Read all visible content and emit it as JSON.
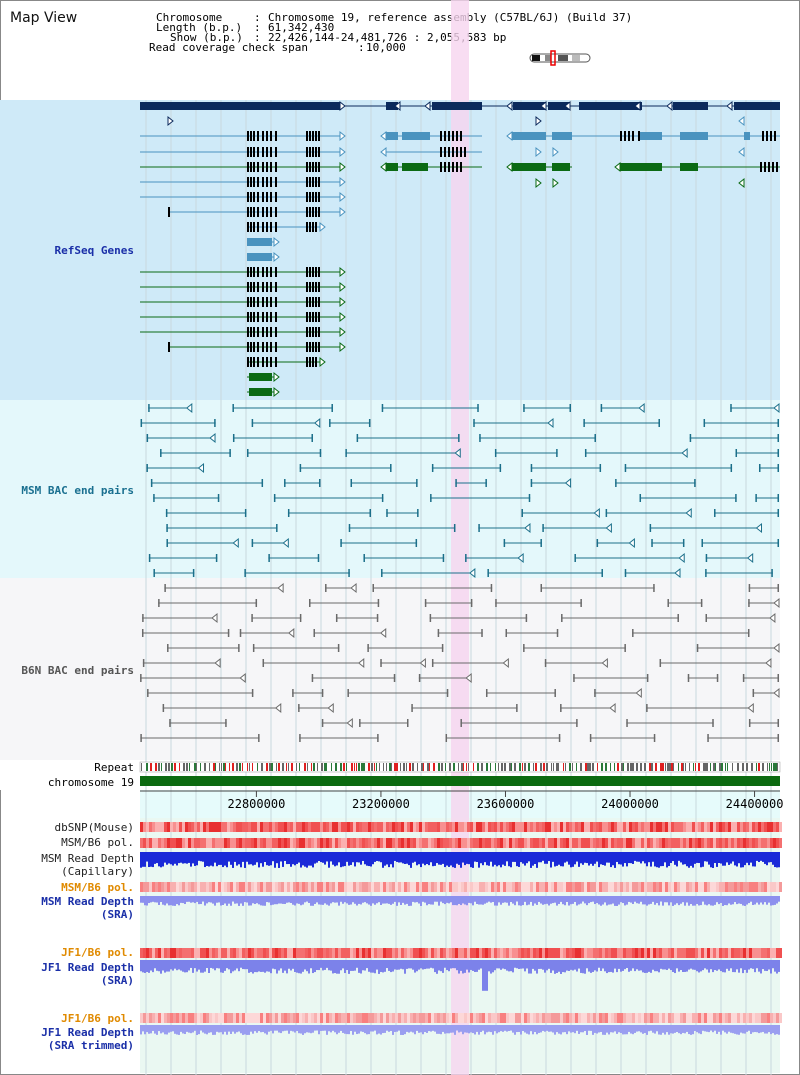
{
  "page_title": "Map View",
  "header": {
    "chromosome_label": "Chromosome",
    "chromosome_value": "Chromosome 19, reference assembly (C57BL/6J) (Build 37)",
    "length_label": "Length (b.p.)",
    "length_value": "61,342,430",
    "show_label": "Show (b.p.)",
    "show_value": "22,426,144-24,481,726 : 2,055,583 bp",
    "coverage_label": "Read coverage check span",
    "coverage_value": "10,000"
  },
  "tracks": {
    "refseq": "RefSeq Genes",
    "msm_bac": "MSM BAC end pairs",
    "b6n_bac": "B6N BAC end pairs",
    "repeat": "Repeat",
    "chromosome": "chromosome 19",
    "dbsnp": "dbSNP(Mouse)",
    "msm_b6_pol_1": "MSM/B6 pol.",
    "msm_read_depth_cap_1": "MSM Read Depth",
    "msm_read_depth_cap_2": "(Capillary)",
    "msm_b6_pol_2": "MSM/B6 pol.",
    "msm_read_depth_sra_1": "MSM Read Depth",
    "msm_read_depth_sra_2": "(SRA)",
    "jf1_b6_pol_1": "JF1/B6 pol.",
    "jf1_read_depth_sra_1": "JF1 Read Depth",
    "jf1_read_depth_sra_2": "(SRA)",
    "jf1_b6_pol_2": "JF1/B6 pol.",
    "jf1_read_depth_trim_1": "JF1 Read Depth",
    "jf1_read_depth_trim_2": "(SRA trimmed)"
  },
  "axis": {
    "ticks": [
      "22800000",
      "23200000",
      "23600000",
      "24000000",
      "24400000"
    ],
    "range_bp": [
      22426144,
      24481726
    ],
    "tick_values": [
      22800000,
      23200000,
      23600000,
      24000000,
      24400000
    ]
  },
  "colors": {
    "refseq_bg": "#cfeaf8",
    "msm_bg": "#e4f8fb",
    "b6n_bg": "#f4f4f6",
    "highlight": "#f6d4ef",
    "gene_dark": "#0c2a5c",
    "gene_light": "#4a93bf",
    "gene_green": "#0b6a14",
    "msm_pair": "#1b6f8a",
    "b6n_pair": "#6a6a6a",
    "chrom_bar": "#0c6a10",
    "title_blue": "#1a2fa8",
    "msm_label": "#1a7090",
    "b6n_label": "#555555",
    "pol_orange": "#e08a00"
  }
}
